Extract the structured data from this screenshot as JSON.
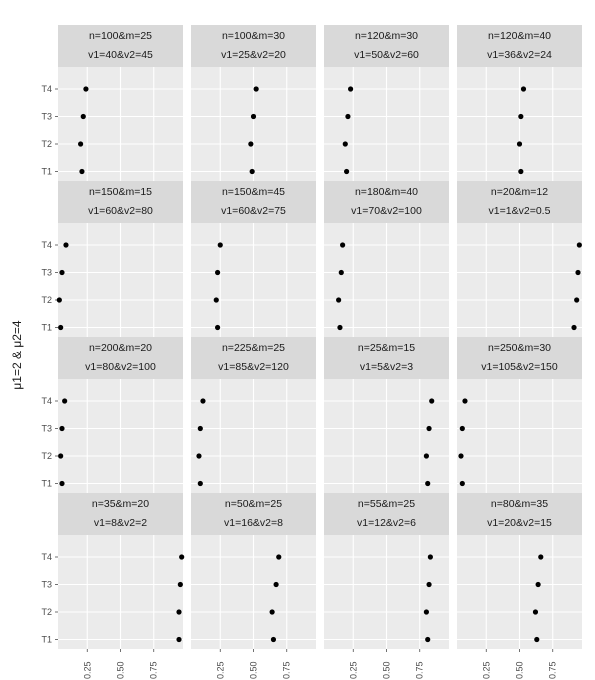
{
  "chart_data": {
    "type": "scatter",
    "ylabel": "μ1=2 & μ2=4",
    "categories": [
      "T1",
      "T2",
      "T3",
      "T4"
    ],
    "x_ticks": [
      "0.25",
      "0.50",
      "0.75"
    ],
    "xlim": [
      0.03,
      0.97
    ],
    "grid": true,
    "panels": [
      {
        "strip": [
          "n=100&m=25",
          "v1=40&v2=45"
        ],
        "values": [
          0.21,
          0.2,
          0.22,
          0.24
        ]
      },
      {
        "strip": [
          "n=100&m=30",
          "v1=25&v2=20"
        ],
        "values": [
          0.49,
          0.48,
          0.5,
          0.52
        ]
      },
      {
        "strip": [
          "n=120&m=30",
          "v1=50&v2=60"
        ],
        "values": [
          0.2,
          0.19,
          0.21,
          0.23
        ]
      },
      {
        "strip": [
          "n=120&m=40",
          "v1=36&v2=24"
        ],
        "values": [
          0.51,
          0.5,
          0.51,
          0.53
        ]
      },
      {
        "strip": [
          "n=150&m=15",
          "v1=60&v2=80"
        ],
        "values": [
          0.05,
          0.04,
          0.06,
          0.09
        ]
      },
      {
        "strip": [
          "n=150&m=45",
          "v1=60&v2=75"
        ],
        "values": [
          0.23,
          0.22,
          0.23,
          0.25
        ]
      },
      {
        "strip": [
          "n=180&m=40",
          "v1=70&v2=100"
        ],
        "values": [
          0.15,
          0.14,
          0.16,
          0.17
        ]
      },
      {
        "strip": [
          "n=20&m=12",
          "v1=1&v2=0.5"
        ],
        "values": [
          0.91,
          0.93,
          0.94,
          0.95
        ]
      },
      {
        "strip": [
          "n=200&m=20",
          "v1=80&v2=100"
        ],
        "values": [
          0.06,
          0.05,
          0.06,
          0.08
        ]
      },
      {
        "strip": [
          "n=225&m=25",
          "v1=85&v2=120"
        ],
        "values": [
          0.1,
          0.09,
          0.1,
          0.12
        ]
      },
      {
        "strip": [
          "n=25&m=15",
          "v1=5&v2=3"
        ],
        "values": [
          0.81,
          0.8,
          0.82,
          0.84
        ]
      },
      {
        "strip": [
          "n=250&m=30",
          "v1=105&v2=150"
        ],
        "values": [
          0.07,
          0.06,
          0.07,
          0.09
        ]
      },
      {
        "strip": [
          "n=35&m=20",
          "v1=8&v2=2"
        ],
        "values": [
          0.94,
          0.94,
          0.95,
          0.96
        ]
      },
      {
        "strip": [
          "n=50&m=25",
          "v1=16&v2=8"
        ],
        "values": [
          0.65,
          0.64,
          0.67,
          0.69
        ]
      },
      {
        "strip": [
          "n=55&m=25",
          "v1=12&v2=6"
        ],
        "values": [
          0.81,
          0.8,
          0.82,
          0.83
        ]
      },
      {
        "strip": [
          "n=80&m=35",
          "v1=20&v2=15"
        ],
        "values": [
          0.63,
          0.62,
          0.64,
          0.66
        ]
      }
    ]
  }
}
